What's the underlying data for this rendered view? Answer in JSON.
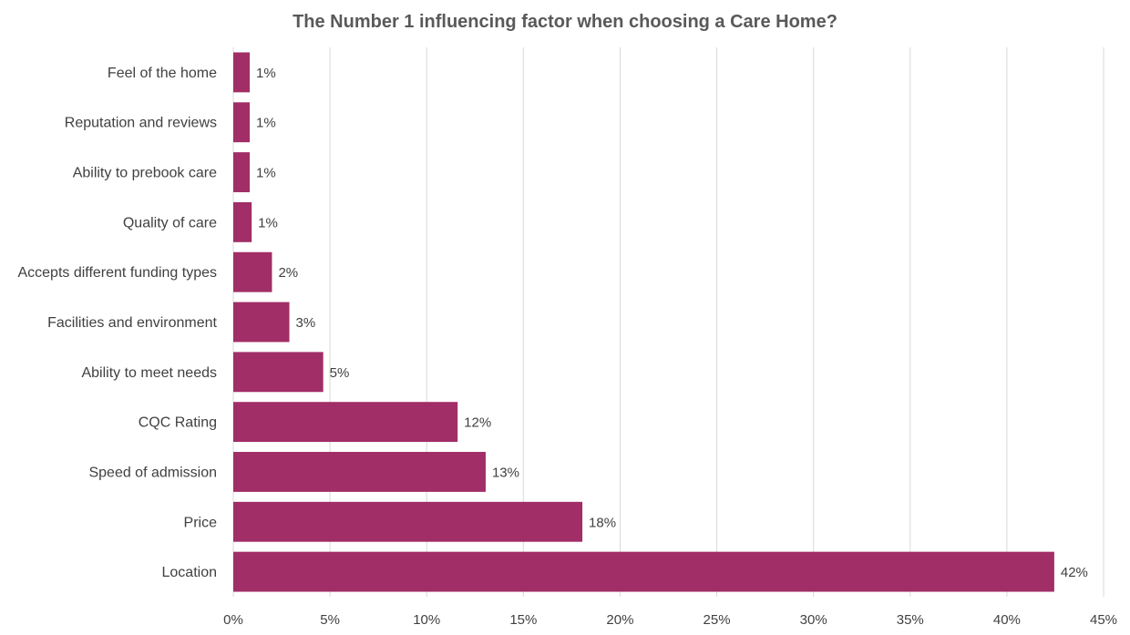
{
  "chart_data": {
    "type": "bar",
    "orientation": "horizontal",
    "title": "The Number 1 influencing factor when choosing a Care Home?",
    "categories": [
      "Feel of the home",
      "Reputation and reviews",
      "Ability to prebook care",
      "Quality of care",
      "Accepts different funding types",
      "Facilities and environment",
      "Ability to meet needs",
      "CQC Rating",
      "Speed of admission",
      "Price",
      "Location"
    ],
    "values": [
      0.85,
      0.85,
      0.85,
      0.95,
      2.0,
      2.9,
      4.65,
      11.6,
      13.05,
      18.05,
      42.45
    ],
    "data_labels": [
      "1%",
      "1%",
      "1%",
      "1%",
      "2%",
      "3%",
      "5%",
      "12%",
      "13%",
      "18%",
      "42%"
    ],
    "xlim": [
      0,
      45
    ],
    "xticks": [
      0,
      5,
      10,
      15,
      20,
      25,
      30,
      35,
      40,
      45
    ],
    "xtick_labels": [
      "0%",
      "5%",
      "10%",
      "15%",
      "20%",
      "25%",
      "30%",
      "35%",
      "40%",
      "45%"
    ],
    "grid": "vertical",
    "legend": "none",
    "bar_color": "#A12E66",
    "grid_color": "#D9D9D9"
  }
}
